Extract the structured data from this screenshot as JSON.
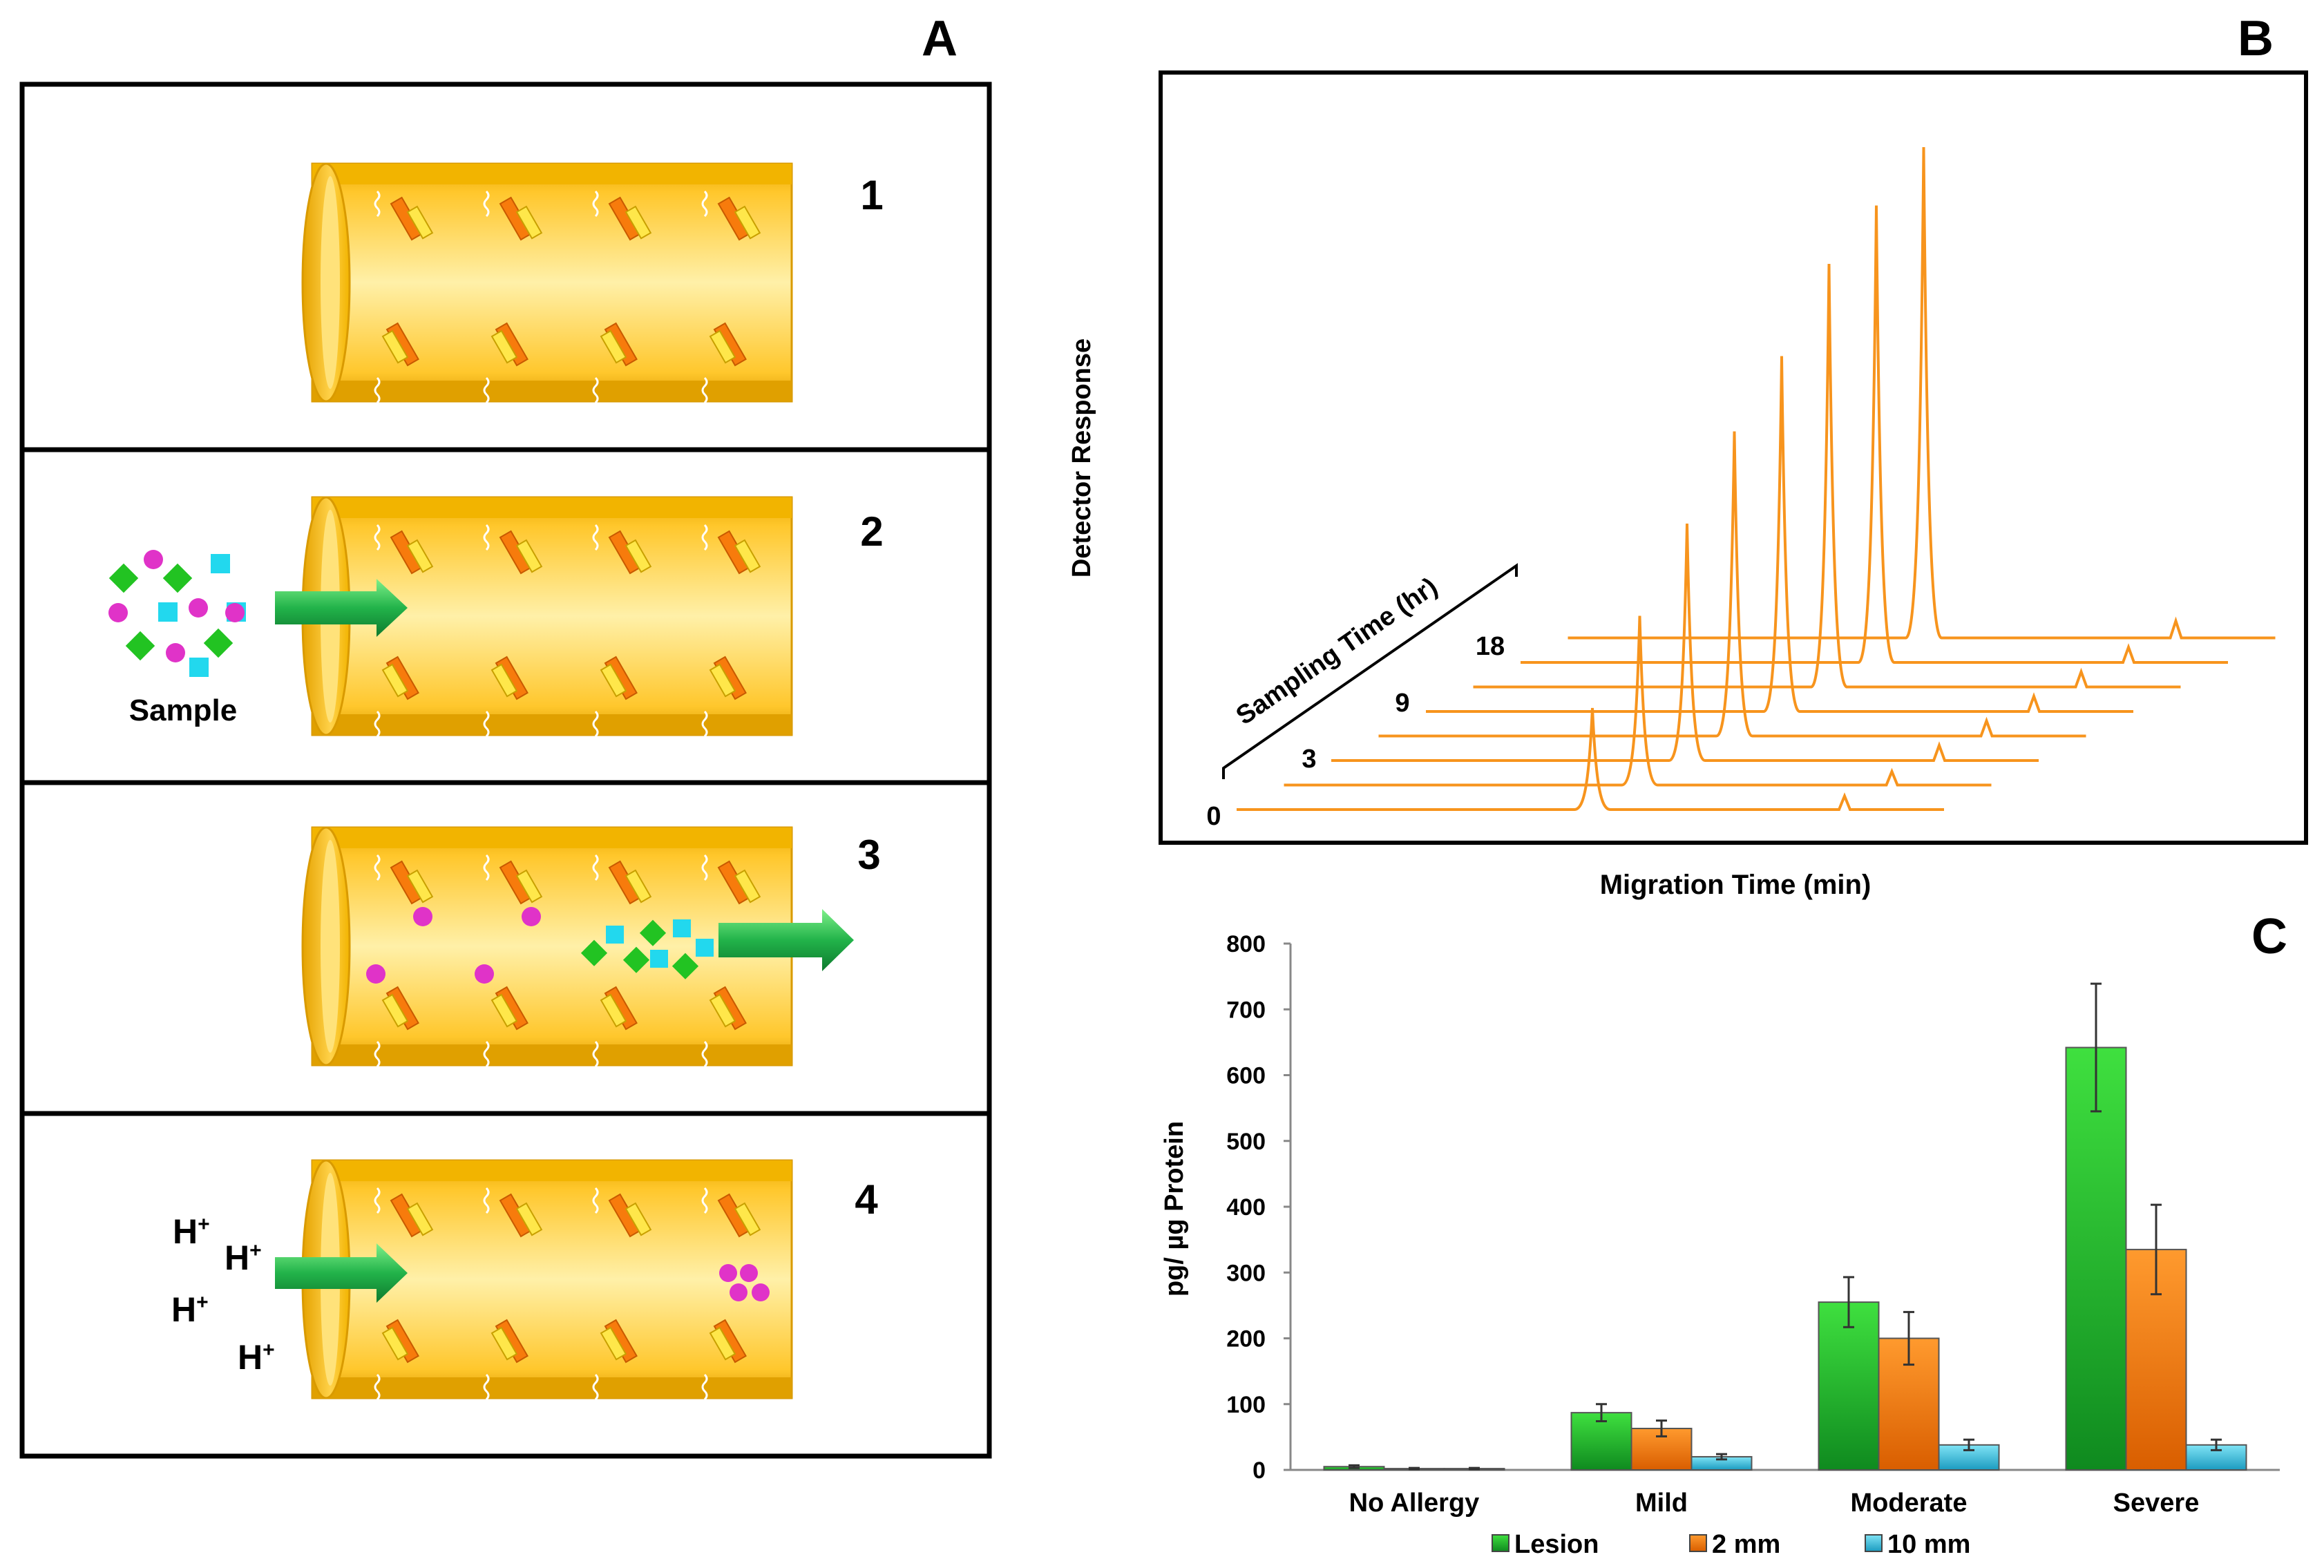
{
  "panels": {
    "a": {
      "letter": "A",
      "steps": [
        {
          "number": "1",
          "description": "Column with immobilized antibodies"
        },
        {
          "number": "2",
          "description": "Sample loaded into column"
        },
        {
          "number": "3",
          "description": "Target binds, other components flow out"
        },
        {
          "number": "4",
          "description": "Acid elution of bound target"
        }
      ],
      "sample_label": "Sample",
      "acid_label": "H",
      "acid_charge": "+"
    },
    "b": {
      "letter": "B",
      "y_label": "Detector Response",
      "x_label": "Migration Time (min)",
      "depth_label": "Sampling Time (hr)",
      "depth_ticks": [
        "0",
        "3",
        "9",
        "18"
      ],
      "trace_color": "#F7941D",
      "traces": [
        {
          "main_peak": 60,
          "minor_peak": 8
        },
        {
          "main_peak": 100,
          "minor_peak": 8
        },
        {
          "main_peak": 140,
          "minor_peak": 9
        },
        {
          "main_peak": 180,
          "minor_peak": 9
        },
        {
          "main_peak": 210,
          "minor_peak": 9
        },
        {
          "main_peak": 250,
          "minor_peak": 9
        },
        {
          "main_peak": 270,
          "minor_peak": 9
        },
        {
          "main_peak": 290,
          "minor_peak": 10
        }
      ]
    },
    "c": {
      "letter": "C",
      "chart_data": {
        "type": "bar",
        "categories": [
          "No Allergy",
          "Mild",
          "Moderate",
          "Severe"
        ],
        "series": [
          {
            "name": "Lesion",
            "color": "#22C322",
            "values": [
              5,
              87,
              255,
              642
            ],
            "errors": [
              2,
              13,
              38,
              97
            ]
          },
          {
            "name": "2 mm",
            "color": "#F77B0C",
            "values": [
              2,
              63,
              200,
              335
            ],
            "errors": [
              1,
              12,
              40,
              68
            ]
          },
          {
            "name": "10 mm",
            "color": "#2EC0E0",
            "values": [
              2,
              20,
              38,
              38
            ],
            "errors": [
              1,
              4,
              8,
              8
            ]
          }
        ],
        "ylabel": "pg/ µg Protein",
        "xlabel": "",
        "ylim": [
          0,
          800
        ],
        "yticks": [
          0,
          100,
          200,
          300,
          400,
          500,
          600,
          700,
          800
        ],
        "legend_position": "bottom"
      }
    }
  }
}
